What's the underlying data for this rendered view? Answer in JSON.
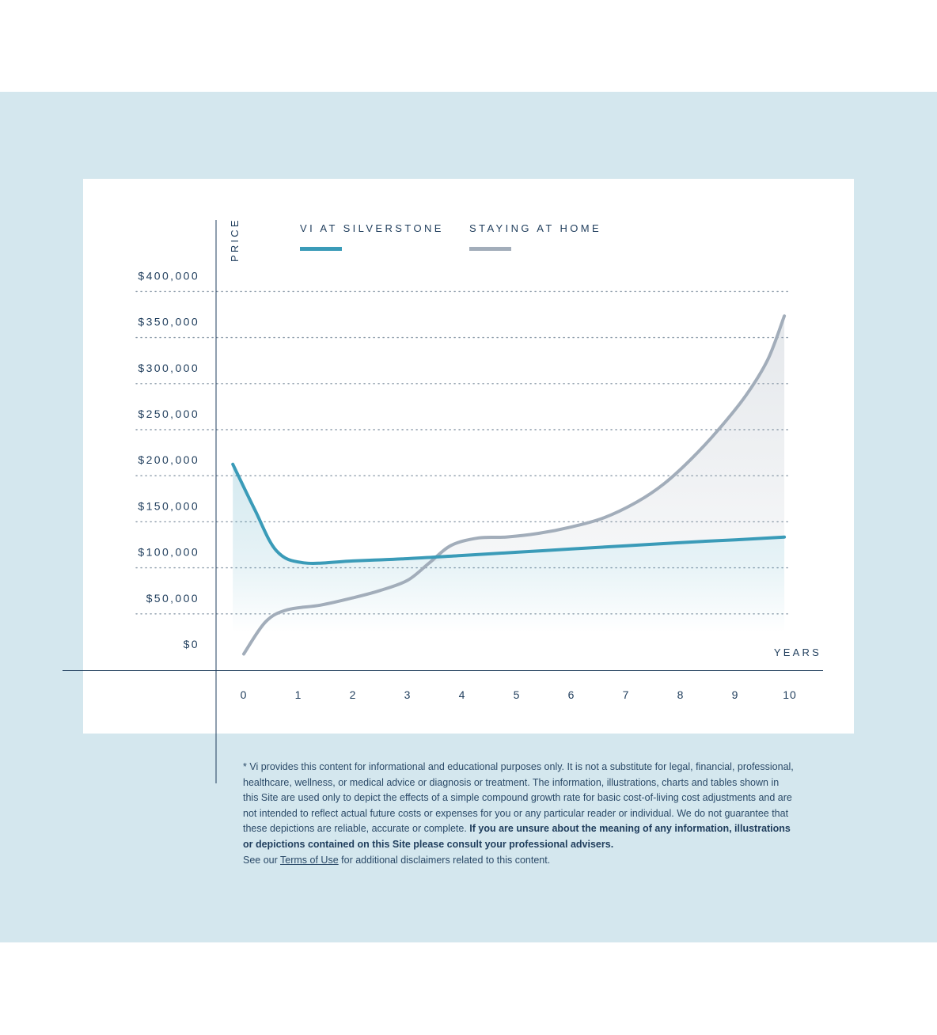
{
  "chart_data": {
    "type": "line",
    "ylabel": "PRICE",
    "xlabel": "YEARS",
    "ylim": [
      0,
      400000
    ],
    "xlim": [
      0,
      10
    ],
    "y_ticks": [
      {
        "value": 400000,
        "label": "$400,000"
      },
      {
        "value": 350000,
        "label": "$350,000"
      },
      {
        "value": 300000,
        "label": "$300,000"
      },
      {
        "value": 250000,
        "label": "$250,000"
      },
      {
        "value": 200000,
        "label": "$200,000"
      },
      {
        "value": 150000,
        "label": "$150,000"
      },
      {
        "value": 100000,
        "label": "$100,000"
      },
      {
        "value": 50000,
        "label": "$50,000"
      },
      {
        "value": 0,
        "label": "$0"
      }
    ],
    "x_ticks": [
      "0",
      "1",
      "2",
      "3",
      "4",
      "5",
      "6",
      "7",
      "8",
      "9",
      "10"
    ],
    "grid": "horizontal dotted",
    "legend_position": "top",
    "series": [
      {
        "name": "VI AT SILVERSTONE",
        "color": "#3a9bb8",
        "points": [
          [
            -0.2,
            209000
          ],
          [
            0.2,
            160000
          ],
          [
            0.6,
            115000
          ],
          [
            1.1,
            102000
          ],
          [
            2,
            104000
          ],
          [
            3,
            106500
          ],
          [
            4,
            110000
          ],
          [
            5,
            113500
          ],
          [
            6,
            117000
          ],
          [
            7,
            120500
          ],
          [
            8,
            124000
          ],
          [
            9,
            127000
          ],
          [
            9.9,
            130000
          ]
        ]
      },
      {
        "name": "STAYING AT HOME",
        "color": "#a2adba",
        "points": [
          [
            0,
            3000
          ],
          [
            0.4,
            38000
          ],
          [
            0.8,
            51000
          ],
          [
            1.4,
            56000
          ],
          [
            2,
            64000
          ],
          [
            2.5,
            72000
          ],
          [
            3,
            83000
          ],
          [
            3.4,
            102000
          ],
          [
            3.8,
            121000
          ],
          [
            4.3,
            129000
          ],
          [
            4.8,
            130000
          ],
          [
            5.4,
            134000
          ],
          [
            6,
            141000
          ],
          [
            6.6,
            151000
          ],
          [
            7.2,
            168000
          ],
          [
            7.7,
            188000
          ],
          [
            8.2,
            215000
          ],
          [
            8.7,
            247000
          ],
          [
            9.2,
            284000
          ],
          [
            9.6,
            323000
          ],
          [
            9.9,
            370000
          ]
        ]
      }
    ]
  },
  "disclaimer": {
    "main": "* Vi provides this content for informational and educational purposes only. It is not a substitute for legal, financial, professional, healthcare, wellness, or medical advice or diagnosis or treatment. The information, illustrations, charts and tables shown in this Site are used only to depict the effects of a simple compound growth rate for basic cost-of-living cost adjustments and are not intended to reflect actual future costs or expenses for you or any particular reader or individual. We do not guarantee that these depictions are reliable, accurate or complete. ",
    "bold": "If you are unsure about the meaning of any information, illustrations or depictions contained on this Site please consult your professional advisers.",
    "see_prefix": "See our ",
    "link": "Terms of Use",
    "see_suffix": " for additional disclaimers related to this content."
  }
}
